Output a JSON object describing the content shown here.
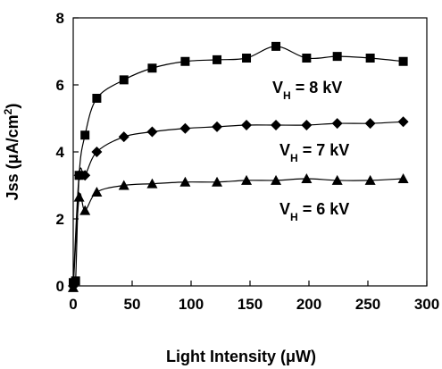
{
  "chart_data": {
    "type": "scatter",
    "xlabel": "Light Intensity (μW)",
    "ylabel_prefix": "Jss (",
    "ylabel_unit": "μA/cm",
    "ylabel_sup": "2",
    "ylabel_suffix": ")",
    "xlim": [
      0,
      300
    ],
    "ylim": [
      0,
      8
    ],
    "xticks": [
      0,
      50,
      100,
      150,
      200,
      250,
      300
    ],
    "yticks": [
      0,
      2,
      4,
      6,
      8
    ],
    "grid": false,
    "series": [
      {
        "name": "VH = 8 kV",
        "label_main": "V",
        "label_sub": "H",
        "label_rest": " = 8 kV",
        "marker": "square",
        "x": [
          0,
          2,
          5,
          10,
          20,
          43,
          67,
          95,
          122,
          147,
          172,
          198,
          224,
          252,
          280
        ],
        "y": [
          0.1,
          0.15,
          3.3,
          4.5,
          5.6,
          6.15,
          6.5,
          6.7,
          6.75,
          6.8,
          7.15,
          6.8,
          6.85,
          6.8,
          6.7
        ]
      },
      {
        "name": "VH = 7 kV",
        "label_main": "V",
        "label_sub": "H",
        "label_rest": " = 7 kV",
        "marker": "diamond",
        "x": [
          0,
          5,
          10,
          20,
          43,
          67,
          95,
          122,
          147,
          172,
          198,
          224,
          252,
          280
        ],
        "y": [
          0,
          3.3,
          3.3,
          4.0,
          4.45,
          4.6,
          4.7,
          4.75,
          4.8,
          4.8,
          4.8,
          4.85,
          4.85,
          4.9
        ]
      },
      {
        "name": "VH = 6 kV",
        "label_main": "V",
        "label_sub": "H",
        "label_rest": " = 6 kV",
        "marker": "triangle",
        "x": [
          0,
          5,
          10,
          20,
          43,
          67,
          95,
          122,
          147,
          172,
          198,
          224,
          252,
          280
        ],
        "y": [
          -0.05,
          2.65,
          2.25,
          2.8,
          3.0,
          3.05,
          3.1,
          3.1,
          3.15,
          3.15,
          3.2,
          3.15,
          3.15,
          3.2
        ]
      }
    ]
  }
}
